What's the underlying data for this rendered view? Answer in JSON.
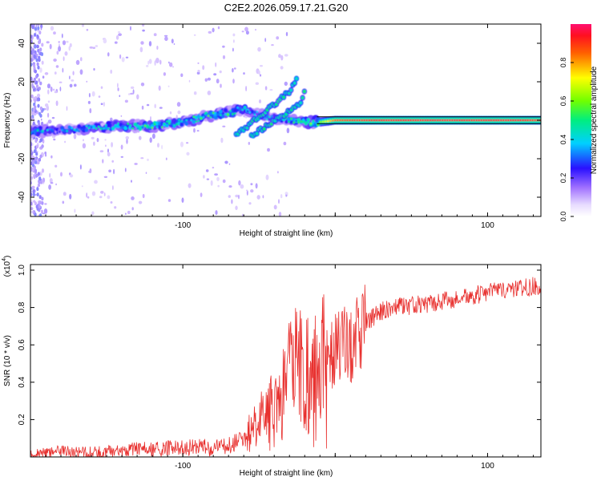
{
  "title": "C2E2.2026.059.17.21.G20",
  "spectrogram": {
    "ylabel": "Frequency (Hz)",
    "xlabel": "Height of straight line (km)",
    "x_ticks": [
      -100,
      0,
      100
    ],
    "x_tick_labels": [
      "-100",
      "",
      "100"
    ],
    "y_ticks": [
      -40,
      -20,
      0,
      20,
      40
    ],
    "y_tick_labels": [
      "-40",
      "-20",
      "0",
      "20",
      "40"
    ],
    "colorbar_label": "Normalized spectral amplitude",
    "colorbar_ticks": [
      0.0,
      0.2,
      0.4,
      0.6,
      0.8
    ],
    "colorbar_tick_labels": [
      "0.0",
      "0.2",
      "0.4",
      "0.6",
      "0.8"
    ]
  },
  "snr_plot": {
    "ylabel": "SNR (10 * v/v)",
    "exponent_label": "(x10",
    "exponent_power": "4",
    "exponent_close": ")",
    "xlabel": "Height of straight line (km)",
    "x_ticks": [
      -100,
      0,
      100
    ],
    "x_tick_labels": [
      "-100",
      "",
      "100"
    ],
    "y_ticks": [
      0.2,
      0.4,
      0.6,
      0.8,
      1.0
    ],
    "y_tick_labels": [
      "0.2",
      "0.4",
      "0.6",
      "0.8",
      "1.0"
    ]
  },
  "chart_data": [
    {
      "type": "heatmap",
      "title": "C2E2.2026.059.17.21.G20",
      "xlabel": "Height of straight line (km)",
      "ylabel": "Frequency (Hz)",
      "xlim": [
        -200,
        135
      ],
      "ylim": [
        -50,
        50
      ],
      "colorbar": {
        "label": "Normalized spectral amplitude",
        "range": [
          0,
          1
        ]
      },
      "ridge": {
        "x": [
          -195,
          -180,
          -160,
          -140,
          -120,
          -100,
          -85,
          -70,
          -60,
          -50,
          -40,
          -30,
          -20,
          -10,
          0,
          10,
          30,
          60,
          90,
          120,
          135
        ],
        "y": [
          -6,
          -5,
          -4,
          -3,
          -3,
          -1,
          2,
          4,
          6,
          3,
          1,
          0,
          -1,
          -1,
          0,
          0,
          0,
          0,
          0,
          0,
          0
        ],
        "amplitude": [
          0.4,
          0.35,
          0.4,
          0.45,
          0.5,
          0.45,
          0.5,
          0.5,
          0.45,
          0.3,
          0.4,
          0.45,
          0.5,
          0.6,
          0.85,
          0.9,
          0.95,
          0.95,
          0.95,
          0.95,
          0.9
        ]
      },
      "side_branches": [
        {
          "x": [
            -65,
            -45,
            -30,
            -25
          ],
          "y": [
            -8,
            5,
            15,
            22
          ]
        },
        {
          "x": [
            -55,
            -35,
            -22,
            -20
          ],
          "y": [
            -8,
            2,
            10,
            15
          ]
        }
      ]
    },
    {
      "type": "line",
      "xlabel": "Height of straight line (km)",
      "ylabel": "SNR (10 * v/v)",
      "y_scale": "x10^4",
      "xlim": [
        -200,
        135
      ],
      "ylim": [
        0,
        1.03
      ],
      "series": [
        {
          "name": "SNR",
          "color": "#e8302e",
          "x": [
            -200,
            -180,
            -160,
            -140,
            -120,
            -100,
            -80,
            -70,
            -60,
            -50,
            -40,
            -35,
            -30,
            -25,
            -20,
            -15,
            -10,
            -5,
            0,
            5,
            10,
            15,
            20,
            30,
            40,
            60,
            80,
            100,
            120,
            135
          ],
          "y": [
            0.01,
            0.03,
            0.02,
            0.04,
            0.04,
            0.05,
            0.05,
            0.06,
            0.1,
            0.18,
            0.25,
            0.32,
            0.45,
            0.55,
            0.45,
            0.35,
            0.38,
            0.5,
            0.55,
            0.6,
            0.58,
            0.65,
            0.72,
            0.78,
            0.8,
            0.82,
            0.85,
            0.88,
            0.9,
            0.92
          ]
        }
      ]
    }
  ],
  "colors": {
    "snr_line": "#e8302e",
    "band_line": "#000000"
  }
}
